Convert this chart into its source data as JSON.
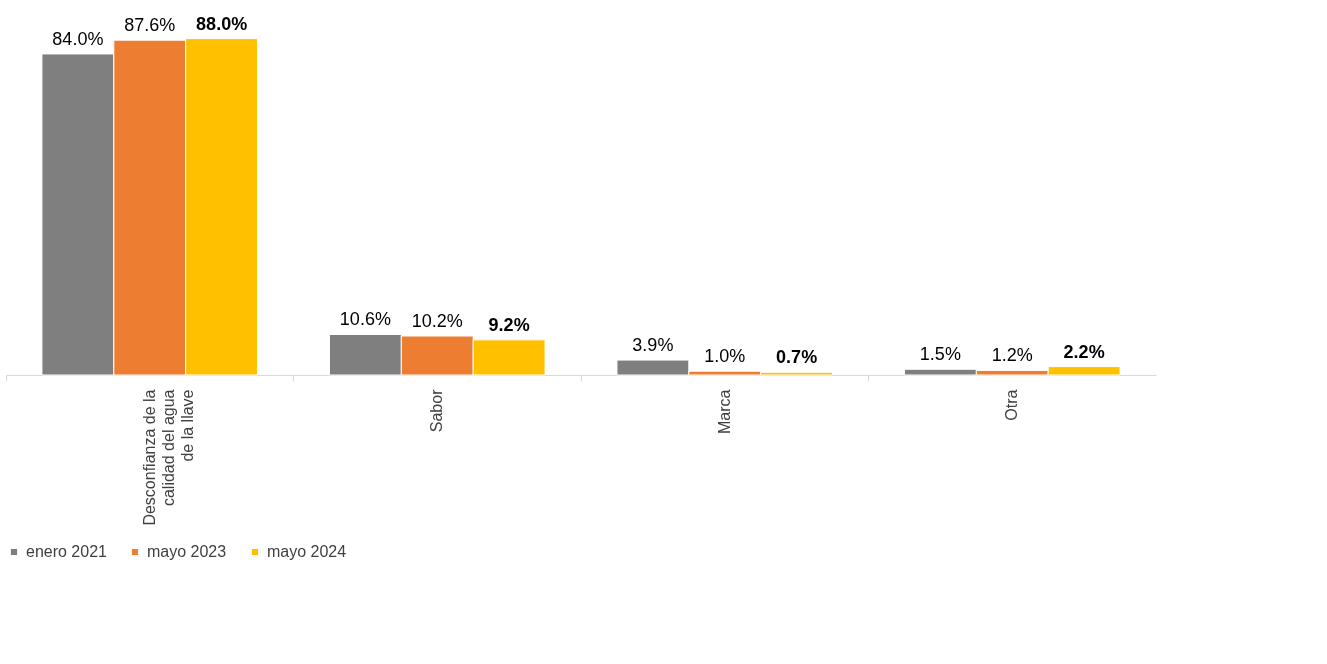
{
  "chart_data": {
    "type": "bar",
    "categories": [
      "Desconfianza de la calidad del agua de la llave",
      "Sabor",
      "Marca",
      "Otra"
    ],
    "series": [
      {
        "name": "enero 2021",
        "color": "#7f7f7f",
        "values": [
          84.0,
          10.6,
          3.9,
          1.5
        ],
        "value_labels": [
          "84.0%",
          "10.6%",
          "3.9%",
          "1.5%"
        ]
      },
      {
        "name": "mayo 2023",
        "color": "#ed7d31",
        "values": [
          87.6,
          10.2,
          1.0,
          1.2
        ],
        "value_labels": [
          "87.6%",
          "10.2%",
          "1.0%",
          "1.2%"
        ]
      },
      {
        "name": "mayo 2024",
        "color": "#ffc000",
        "values": [
          88.0,
          9.2,
          0.7,
          2.2
        ],
        "value_labels": [
          "88.0%",
          "9.2%",
          "0.7%",
          "2.2%"
        ]
      }
    ],
    "legend": "bottom",
    "grid": false
  }
}
